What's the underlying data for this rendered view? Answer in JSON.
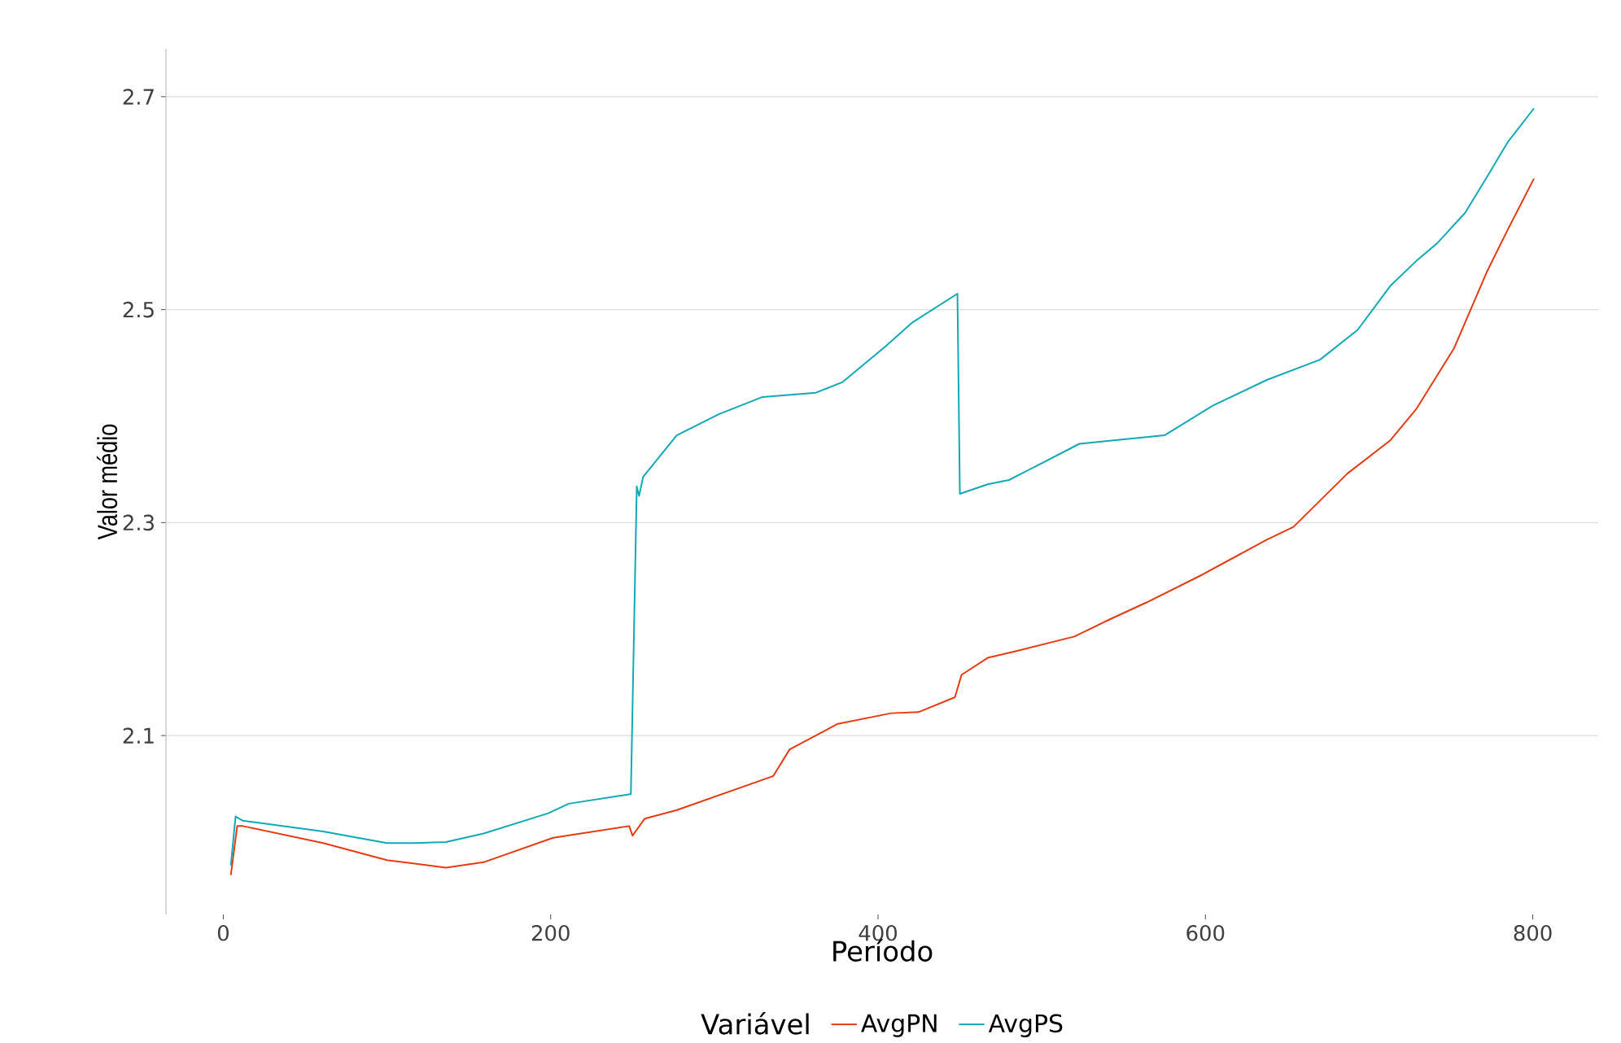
{
  "chart_data": {
    "type": "line",
    "xlabel": "Período",
    "ylabel": "Valor médio",
    "legend_title": "Variável",
    "xlim": [
      -35,
      840
    ],
    "ylim": [
      1.932,
      2.745
    ],
    "xticks": [
      0,
      200,
      400,
      600,
      800
    ],
    "yticks": [
      2.1,
      2.3,
      2.5,
      2.7
    ],
    "grid": "y",
    "legend": "bottom",
    "marker": "none",
    "line_style": "solid",
    "series": [
      {
        "name": "AvgPN",
        "color": "#e63b12",
        "x": [
          4.6,
          8.5,
          12,
          61,
          100,
          136,
          159,
          201.5,
          248,
          250,
          257.5,
          277,
          336,
          346,
          375.4,
          408,
          424.6,
          447,
          451,
          467,
          483.5,
          520,
          540,
          564,
          598,
          637.5,
          653.8,
          686.7,
          712.8,
          729,
          752,
          771.8,
          785,
          800.7
        ],
        "values": [
          1.969,
          2.015,
          2.015,
          1.999,
          1.983,
          1.976,
          1.981,
          2.004,
          2.015,
          2.006,
          2.022,
          2.03,
          2.062,
          2.087,
          2.111,
          2.121,
          2.122,
          2.136,
          2.157,
          2.173,
          2.179,
          2.193,
          2.208,
          2.225,
          2.251,
          2.284,
          2.296,
          2.346,
          2.377,
          2.407,
          2.464,
          2.535,
          2.576,
          2.623
        ]
      },
      {
        "name": "AvgPS",
        "color": "#10a9b5",
        "x": [
          4.6,
          7.5,
          12,
          61,
          100,
          116.6,
          136,
          159,
          198.5,
          211,
          249,
          252.6,
          254,
          256.5,
          277,
          303,
          329.5,
          362,
          378.4,
          405,
          421,
          448.5,
          450,
          467,
          480,
          523,
          575,
          604.7,
          637.5,
          670,
          693,
          712.8,
          729,
          742,
          758.7,
          771.8,
          785,
          800.7
        ],
        "values": [
          1.978,
          2.024,
          2.02,
          2.01,
          1.999,
          1.999,
          2.0,
          2.008,
          2.027,
          2.036,
          2.045,
          2.334,
          2.325,
          2.343,
          2.382,
          2.402,
          2.418,
          2.422,
          2.432,
          2.466,
          2.488,
          2.515,
          2.327,
          2.336,
          2.34,
          2.374,
          2.382,
          2.41,
          2.434,
          2.453,
          2.481,
          2.522,
          2.546,
          2.563,
          2.591,
          2.624,
          2.658,
          2.689
        ]
      }
    ]
  }
}
